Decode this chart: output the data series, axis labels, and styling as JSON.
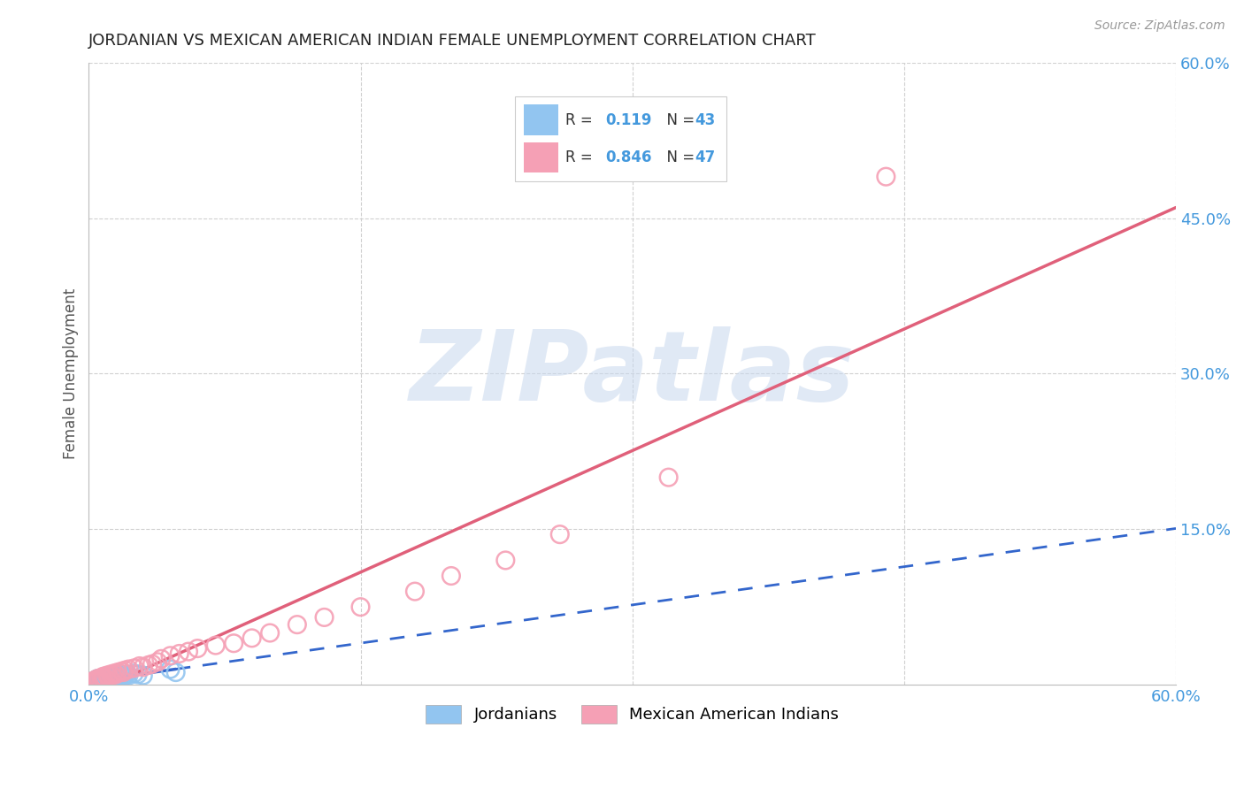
{
  "title": "JORDANIAN VS MEXICAN AMERICAN INDIAN FEMALE UNEMPLOYMENT CORRELATION CHART",
  "source": "Source: ZipAtlas.com",
  "ylabel": "Female Unemployment",
  "xlim": [
    0.0,
    0.6
  ],
  "ylim": [
    0.0,
    0.6
  ],
  "jordanian_color": "#92C5F0",
  "mexican_color": "#F5A0B5",
  "jordanian_line_color": "#3366CC",
  "mexican_line_color": "#E0607A",
  "legend_label1": "Jordanians",
  "legend_label2": "Mexican American Indians",
  "watermark_text": "ZIPatlas",
  "background_color": "#FFFFFF",
  "grid_color": "#D0D0D0",
  "title_color": "#222222",
  "axis_label_color": "#555555",
  "right_tick_color": "#4499DD",
  "bottom_tick_color": "#4499DD",
  "jordanian_x": [
    0.002,
    0.003,
    0.004,
    0.004,
    0.005,
    0.005,
    0.005,
    0.006,
    0.006,
    0.006,
    0.007,
    0.007,
    0.007,
    0.007,
    0.008,
    0.008,
    0.008,
    0.008,
    0.009,
    0.009,
    0.01,
    0.01,
    0.01,
    0.011,
    0.011,
    0.012,
    0.012,
    0.013,
    0.014,
    0.015,
    0.016,
    0.017,
    0.018,
    0.018,
    0.019,
    0.02,
    0.021,
    0.022,
    0.025,
    0.027,
    0.03,
    0.045,
    0.048
  ],
  "jordanian_y": [
    0.003,
    0.002,
    0.004,
    0.005,
    0.003,
    0.004,
    0.006,
    0.003,
    0.004,
    0.005,
    0.003,
    0.004,
    0.005,
    0.006,
    0.004,
    0.005,
    0.006,
    0.007,
    0.005,
    0.006,
    0.004,
    0.005,
    0.007,
    0.006,
    0.008,
    0.005,
    0.007,
    0.006,
    0.007,
    0.008,
    0.007,
    0.008,
    0.009,
    0.01,
    0.008,
    0.009,
    0.01,
    0.009,
    0.011,
    0.01,
    0.009,
    0.015,
    0.012
  ],
  "mexican_x": [
    0.002,
    0.003,
    0.004,
    0.004,
    0.005,
    0.005,
    0.006,
    0.007,
    0.007,
    0.008,
    0.008,
    0.009,
    0.01,
    0.011,
    0.012,
    0.013,
    0.014,
    0.015,
    0.016,
    0.018,
    0.019,
    0.02,
    0.022,
    0.025,
    0.028,
    0.03,
    0.033,
    0.035,
    0.038,
    0.04,
    0.045,
    0.05,
    0.055,
    0.06,
    0.07,
    0.08,
    0.09,
    0.1,
    0.115,
    0.13,
    0.15,
    0.18,
    0.2,
    0.23,
    0.26,
    0.32,
    0.44
  ],
  "mexican_y": [
    0.003,
    0.004,
    0.003,
    0.005,
    0.004,
    0.006,
    0.005,
    0.004,
    0.007,
    0.006,
    0.008,
    0.007,
    0.009,
    0.008,
    0.01,
    0.009,
    0.011,
    0.01,
    0.012,
    0.013,
    0.012,
    0.014,
    0.015,
    0.016,
    0.018,
    0.017,
    0.019,
    0.02,
    0.022,
    0.025,
    0.028,
    0.03,
    0.032,
    0.035,
    0.038,
    0.04,
    0.045,
    0.05,
    0.058,
    0.065,
    0.075,
    0.09,
    0.105,
    0.12,
    0.145,
    0.2,
    0.49
  ]
}
